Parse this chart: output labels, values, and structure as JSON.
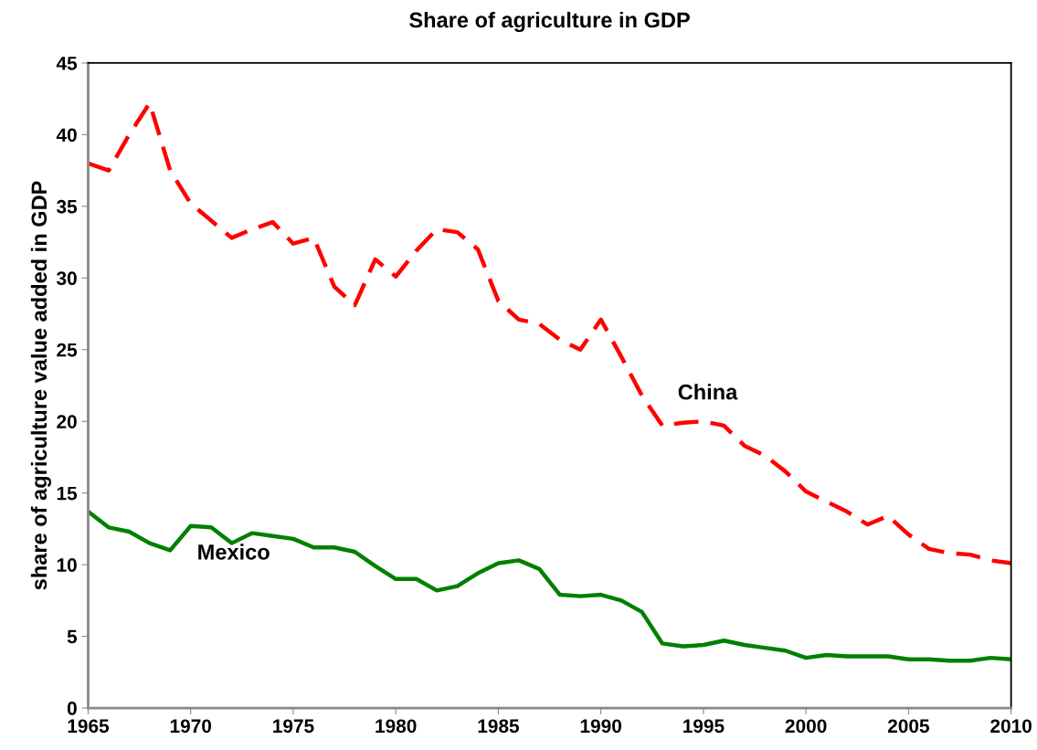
{
  "chart_data": {
    "type": "line",
    "title": "Share of agriculture in GDP",
    "ylabel": "share of agriculture value added in GDP",
    "x": [
      1965,
      1966,
      1967,
      1968,
      1969,
      1970,
      1971,
      1972,
      1973,
      1974,
      1975,
      1976,
      1977,
      1978,
      1979,
      1980,
      1981,
      1982,
      1983,
      1984,
      1985,
      1986,
      1987,
      1988,
      1989,
      1990,
      1991,
      1992,
      1993,
      1994,
      1995,
      1996,
      1997,
      1998,
      1999,
      2000,
      2001,
      2002,
      2003,
      2004,
      2005,
      2006,
      2007,
      2008,
      2009,
      2010
    ],
    "series": [
      {
        "name": "China",
        "color": "#ff0000",
        "line_style": "dashed",
        "values": [
          38.0,
          37.5,
          40.0,
          42.2,
          37.5,
          35.2,
          34.0,
          32.8,
          33.4,
          33.9,
          32.4,
          32.8,
          29.4,
          28.1,
          31.3,
          30.1,
          31.9,
          33.4,
          33.2,
          32.0,
          28.4,
          27.1,
          26.8,
          25.7,
          25.0,
          27.1,
          24.5,
          21.8,
          19.7,
          19.9,
          20.0,
          19.7,
          18.3,
          17.6,
          16.5,
          15.1,
          14.4,
          13.7,
          12.8,
          13.4,
          12.1,
          11.1,
          10.8,
          10.7,
          10.3,
          10.1
        ]
      },
      {
        "name": "Mexico",
        "color": "#008000",
        "line_style": "solid",
        "values": [
          13.7,
          12.6,
          12.3,
          11.5,
          11.0,
          12.7,
          12.6,
          11.5,
          12.2,
          12.0,
          11.8,
          11.2,
          11.2,
          10.9,
          9.9,
          9.0,
          9.0,
          8.2,
          8.5,
          9.4,
          10.1,
          10.3,
          9.7,
          7.9,
          7.8,
          7.9,
          7.5,
          6.7,
          4.5,
          4.3,
          4.4,
          4.7,
          4.4,
          4.2,
          4.0,
          3.5,
          3.7,
          3.6,
          3.6,
          3.6,
          3.4,
          3.4,
          3.3,
          3.3,
          3.5,
          3.4
        ]
      }
    ],
    "xlim": [
      1965,
      2010
    ],
    "xticks": [
      1965,
      1970,
      1975,
      1980,
      1985,
      1990,
      1995,
      2000,
      2005,
      2010
    ],
    "ylim": [
      0,
      45
    ],
    "yticks": [
      0,
      5,
      10,
      15,
      20,
      25,
      30,
      35,
      40,
      45
    ],
    "grid": false,
    "legend": false,
    "marker": "none"
  }
}
